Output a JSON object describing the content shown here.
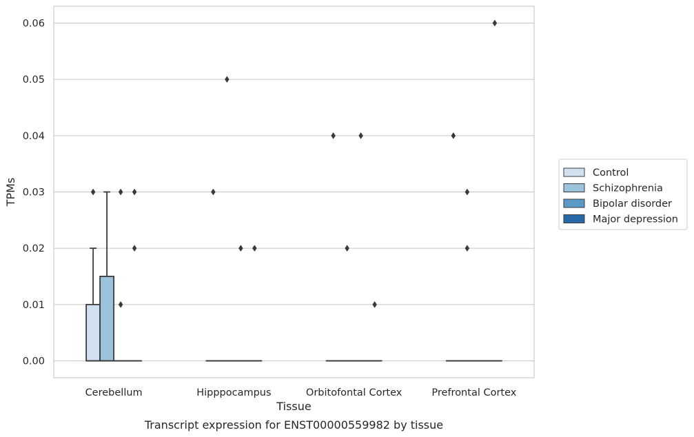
{
  "chart_data": {
    "type": "box",
    "xlabel": "Tissue",
    "ylabel": "TPMs",
    "caption": "Transcript expression for ENST00000559982 by tissue",
    "ylim": [
      -0.003,
      0.063
    ],
    "yticks": [
      0.0,
      0.01,
      0.02,
      0.03,
      0.04,
      0.05,
      0.06
    ],
    "ytick_labels": [
      "0.00",
      "0.01",
      "0.02",
      "0.03",
      "0.04",
      "0.05",
      "0.06"
    ],
    "grid": "horizontal",
    "legend_position": "right",
    "categories": [
      "Cerebellum",
      "Hipppocampus",
      "Orbitofontal Cortex",
      "Prefrontal Cortex"
    ],
    "series": [
      {
        "name": "Control",
        "color": "#d0e0f0",
        "boxes": [
          {
            "q1": 0.0,
            "median": 0.0,
            "q3": 0.01,
            "whisker_low": 0.0,
            "whisker_high": 0.02,
            "outliers": [
              0.03
            ]
          },
          {
            "q1": 0.0,
            "median": 0.0,
            "q3": 0.0,
            "whisker_low": 0.0,
            "whisker_high": 0.0,
            "outliers": [
              0.03
            ]
          },
          {
            "q1": 0.0,
            "median": 0.0,
            "q3": 0.0,
            "whisker_low": 0.0,
            "whisker_high": 0.0,
            "outliers": [
              0.04
            ]
          },
          {
            "q1": 0.0,
            "median": 0.0,
            "q3": 0.0,
            "whisker_low": 0.0,
            "whisker_high": 0.0,
            "outliers": [
              0.04
            ]
          }
        ]
      },
      {
        "name": "Schizophrenia",
        "color": "#9cc3dc",
        "boxes": [
          {
            "q1": 0.0,
            "median": 0.0,
            "q3": 0.015,
            "whisker_low": 0.0,
            "whisker_high": 0.03,
            "outliers": []
          },
          {
            "q1": 0.0,
            "median": 0.0,
            "q3": 0.0,
            "whisker_low": 0.0,
            "whisker_high": 0.0,
            "outliers": [
              0.05
            ]
          },
          {
            "q1": 0.0,
            "median": 0.0,
            "q3": 0.0,
            "whisker_low": 0.0,
            "whisker_high": 0.0,
            "outliers": [
              0.02
            ]
          },
          {
            "q1": 0.0,
            "median": 0.0,
            "q3": 0.0,
            "whisker_low": 0.0,
            "whisker_high": 0.0,
            "outliers": [
              0.03,
              0.02
            ]
          }
        ]
      },
      {
        "name": "Bipolar disorder",
        "color": "#5b99c7",
        "boxes": [
          {
            "q1": 0.0,
            "median": 0.0,
            "q3": 0.0,
            "whisker_low": 0.0,
            "whisker_high": 0.0,
            "outliers": [
              0.03,
              0.01
            ]
          },
          {
            "q1": 0.0,
            "median": 0.0,
            "q3": 0.0,
            "whisker_low": 0.0,
            "whisker_high": 0.0,
            "outliers": [
              0.02
            ]
          },
          {
            "q1": 0.0,
            "median": 0.0,
            "q3": 0.0,
            "whisker_low": 0.0,
            "whisker_high": 0.0,
            "outliers": [
              0.04
            ]
          },
          {
            "q1": 0.0,
            "median": 0.0,
            "q3": 0.0,
            "whisker_low": 0.0,
            "whisker_high": 0.0,
            "outliers": []
          }
        ]
      },
      {
        "name": "Major depression",
        "color": "#2a69a8",
        "boxes": [
          {
            "q1": 0.0,
            "median": 0.0,
            "q3": 0.0,
            "whisker_low": 0.0,
            "whisker_high": 0.0,
            "outliers": [
              0.03,
              0.02
            ]
          },
          {
            "q1": 0.0,
            "median": 0.0,
            "q3": 0.0,
            "whisker_low": 0.0,
            "whisker_high": 0.0,
            "outliers": [
              0.02
            ]
          },
          {
            "q1": 0.0,
            "median": 0.0,
            "q3": 0.0,
            "whisker_low": 0.0,
            "whisker_high": 0.0,
            "outliers": [
              0.01
            ]
          },
          {
            "q1": 0.0,
            "median": 0.0,
            "q3": 0.0,
            "whisker_low": 0.0,
            "whisker_high": 0.0,
            "outliers": [
              0.06
            ]
          }
        ]
      }
    ]
  },
  "colors": {
    "grid": "#cccccc",
    "frame": "#cccccc",
    "edge": "#3a3a3a",
    "text": "#262626"
  }
}
